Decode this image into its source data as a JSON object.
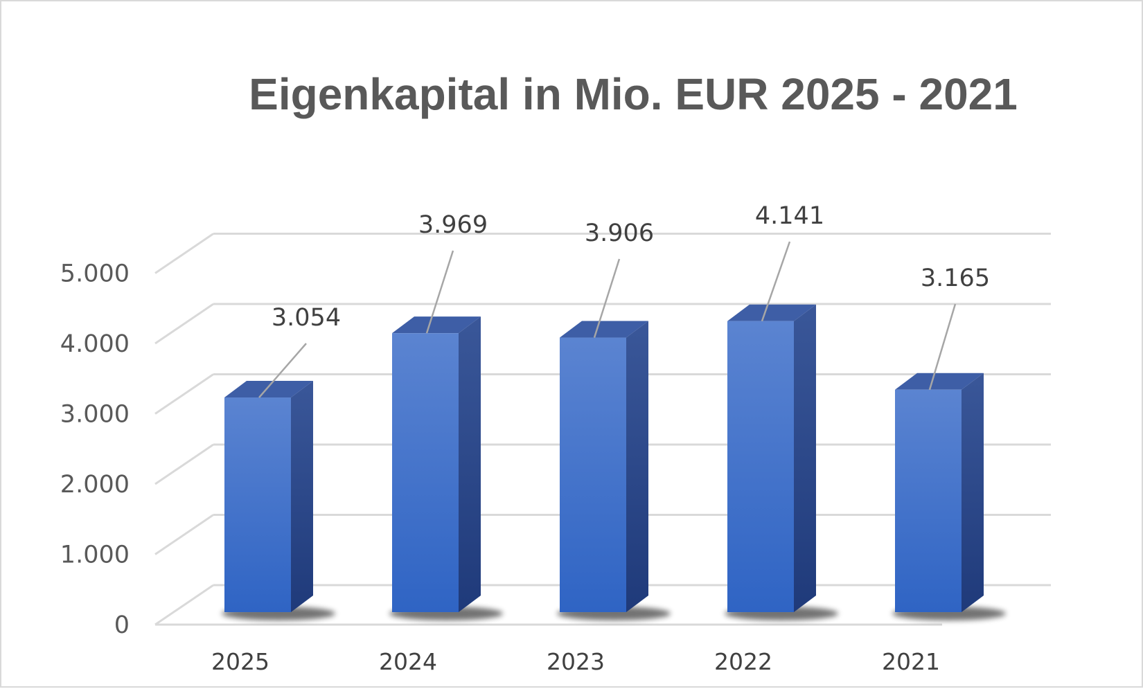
{
  "chart_data": {
    "type": "bar",
    "title": "Eigenkapital in Mio. EUR 2025 - 2021",
    "categories": [
      "2025",
      "2024",
      "2023",
      "2022",
      "2021"
    ],
    "values": [
      3054,
      3969,
      3906,
      4141,
      3165
    ],
    "data_labels": [
      "3.054",
      "3.969",
      "3.906",
      "4.141",
      "3.165"
    ],
    "y_ticks": [
      0,
      1000,
      2000,
      3000,
      4000,
      5000
    ],
    "y_tick_labels": [
      "0",
      "1.000",
      "2.000",
      "3.000",
      "4.000",
      "5.000"
    ],
    "ylim": [
      0,
      5000
    ],
    "xlabel": "",
    "ylabel": "",
    "grid": true,
    "legend": "none",
    "style": "3d-column",
    "colors": {
      "bar_front_top": "#5b84d1",
      "bar_front_bottom": "#2f64c4",
      "bar_side": "#27448a",
      "bar_top": "#3e5ea6",
      "grid": "#d9d9d9",
      "text": "#595959"
    }
  }
}
